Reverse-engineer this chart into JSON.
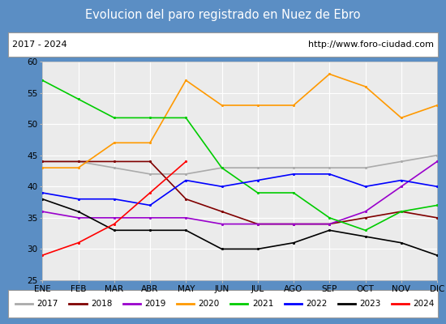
{
  "title": "Evolucion del paro registrado en Nuez de Ebro",
  "subtitle_left": "2017 - 2024",
  "subtitle_right": "http://www.foro-ciudad.com",
  "title_bg_color": "#5b8ec4",
  "title_text_color": "#ffffff",
  "box_bg_color": "#ffffff",
  "box_border_color": "#999999",
  "plot_bg_color": "#ebebeb",
  "grid_color": "#ffffff",
  "outer_bg_color": "#5b8ec4",
  "months": [
    "ENE",
    "FEB",
    "MAR",
    "ABR",
    "MAY",
    "JUN",
    "JUL",
    "AGO",
    "SEP",
    "OCT",
    "NOV",
    "DIC"
  ],
  "ylim": [
    25,
    60
  ],
  "yticks": [
    25,
    30,
    35,
    40,
    45,
    50,
    55,
    60
  ],
  "series": {
    "2017": {
      "color": "#aaaaaa",
      "values": [
        44,
        44,
        43,
        42,
        42,
        43,
        43,
        43,
        43,
        43,
        44,
        45
      ]
    },
    "2018": {
      "color": "#800000",
      "values": [
        44,
        44,
        44,
        44,
        38,
        36,
        34,
        34,
        34,
        35,
        36,
        35
      ]
    },
    "2019": {
      "color": "#9900cc",
      "values": [
        36,
        35,
        35,
        35,
        35,
        34,
        34,
        34,
        34,
        36,
        40,
        44
      ]
    },
    "2020": {
      "color": "#ff9900",
      "values": [
        43,
        43,
        47,
        47,
        57,
        53,
        53,
        53,
        58,
        56,
        51,
        53
      ]
    },
    "2021": {
      "color": "#00cc00",
      "values": [
        57,
        54,
        51,
        51,
        51,
        43,
        39,
        39,
        35,
        33,
        36,
        37
      ]
    },
    "2022": {
      "color": "#0000ff",
      "values": [
        39,
        38,
        38,
        37,
        41,
        40,
        41,
        42,
        42,
        40,
        41,
        40
      ]
    },
    "2023": {
      "color": "#000000",
      "values": [
        38,
        36,
        33,
        33,
        33,
        30,
        30,
        31,
        33,
        32,
        31,
        29
      ]
    },
    "2024": {
      "color": "#ff0000",
      "values": [
        29,
        31,
        34,
        39,
        44,
        null,
        null,
        null,
        null,
        null,
        null,
        null
      ]
    }
  },
  "legend_order": [
    "2017",
    "2018",
    "2019",
    "2020",
    "2021",
    "2022",
    "2023",
    "2024"
  ],
  "fig_width": 5.5,
  "fig_height": 4.0,
  "dpi": 100
}
